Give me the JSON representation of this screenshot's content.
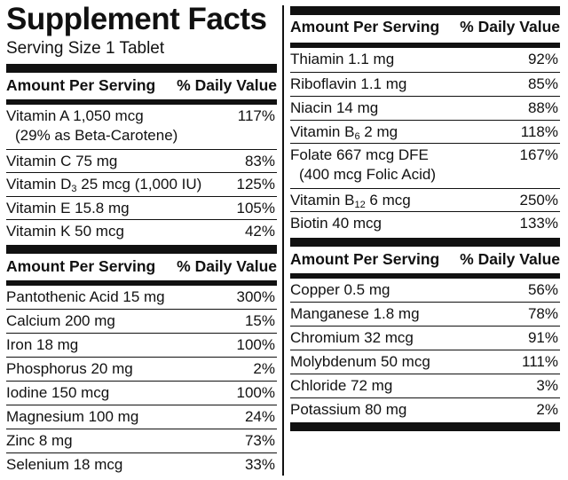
{
  "facts": {
    "title": "Supplement Facts",
    "serving_size": "Serving Size 1 Tablet",
    "header_amount": "Amount Per Serving",
    "header_dv": "% Daily Value",
    "left_top": [
      {
        "name": "Vitamin A 1,050 mcg",
        "note": "(29% as Beta-Carotene)",
        "dv": "117%"
      },
      {
        "name": "Vitamin C 75 mg",
        "dv": "83%"
      },
      {
        "name_pre": "Vitamin D",
        "name_sub": "3",
        "name_post": " 25 mcg (1,000 IU)",
        "dv": "125%"
      },
      {
        "name": "Vitamin E  15.8 mg",
        "dv": "105%"
      },
      {
        "name": "Vitamin K 50 mcg",
        "dv": "42%"
      }
    ],
    "left_bottom": [
      {
        "name": "Pantothenic Acid 15 mg",
        "dv": "300%"
      },
      {
        "name": "Calcium 200 mg",
        "dv": "15%"
      },
      {
        "name": "Iron 18 mg",
        "dv": "100%"
      },
      {
        "name": "Phosphorus 20 mg",
        "dv": "2%"
      },
      {
        "name": "Iodine 150 mcg",
        "dv": "100%"
      },
      {
        "name": "Magnesium 100 mg",
        "dv": "24%"
      },
      {
        "name": "Zinc 8 mg",
        "dv": "73%"
      },
      {
        "name": "Selenium 18 mcg",
        "dv": "33%"
      }
    ],
    "right_top": [
      {
        "name": "Thiamin 1.1 mg",
        "dv": "92%"
      },
      {
        "name": "Riboflavin 1.1 mg",
        "dv": "85%"
      },
      {
        "name": "Niacin 14 mg",
        "dv": "88%"
      },
      {
        "name_pre": "Vitamin B",
        "name_sub": "6",
        "name_post": " 2 mg",
        "dv": "118%"
      },
      {
        "name": "Folate 667 mcg DFE",
        "note": "(400 mcg Folic Acid)",
        "dv": "167%"
      },
      {
        "name_pre": "Vitamin B",
        "name_sub": "12",
        "name_post": " 6 mcg",
        "dv": "250%"
      },
      {
        "name": "Biotin 40 mcg",
        "dv": "133%"
      }
    ],
    "right_bottom": [
      {
        "name": "Copper 0.5 mg",
        "dv": "56%"
      },
      {
        "name": "Manganese 1.8 mg",
        "dv": "78%"
      },
      {
        "name": "Chromium 32 mcg",
        "dv": "91%"
      },
      {
        "name": "Molybdenum 50 mcg",
        "dv": "111%"
      },
      {
        "name": "Chloride 72 mg",
        "dv": "3%"
      },
      {
        "name": "Potassium 80 mg",
        "dv": "2%"
      }
    ]
  }
}
